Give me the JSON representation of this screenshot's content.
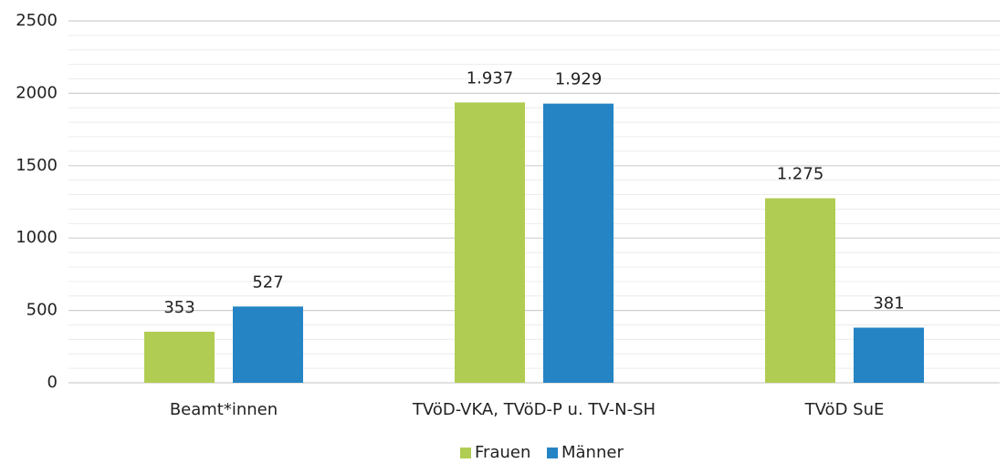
{
  "chart_data": {
    "type": "bar",
    "categories": [
      "Beamt*innen",
      "TVöD-VKA, TVöD-P u. TV-N-SH",
      "TVöD SuE"
    ],
    "series": [
      {
        "name": "Frauen",
        "color": "#b1cc52",
        "values": [
          353,
          1937,
          1275
        ],
        "value_labels": [
          "353",
          "1.937",
          "1.275"
        ]
      },
      {
        "name": "Männer",
        "color": "#2584c4",
        "values": [
          527,
          1929,
          381
        ],
        "value_labels": [
          "527",
          "1.929",
          "381"
        ]
      }
    ],
    "ylim": [
      0,
      2500
    ],
    "yticks": [
      0,
      500,
      1000,
      1500,
      2000,
      2500
    ],
    "minor_yticks": [
      100,
      200,
      300,
      400,
      600,
      700,
      800,
      900,
      1100,
      1200,
      1300,
      1400,
      1600,
      1700,
      1800,
      1900,
      2100,
      2200,
      2300,
      2400
    ],
    "grid": true,
    "legend": "bottom"
  }
}
